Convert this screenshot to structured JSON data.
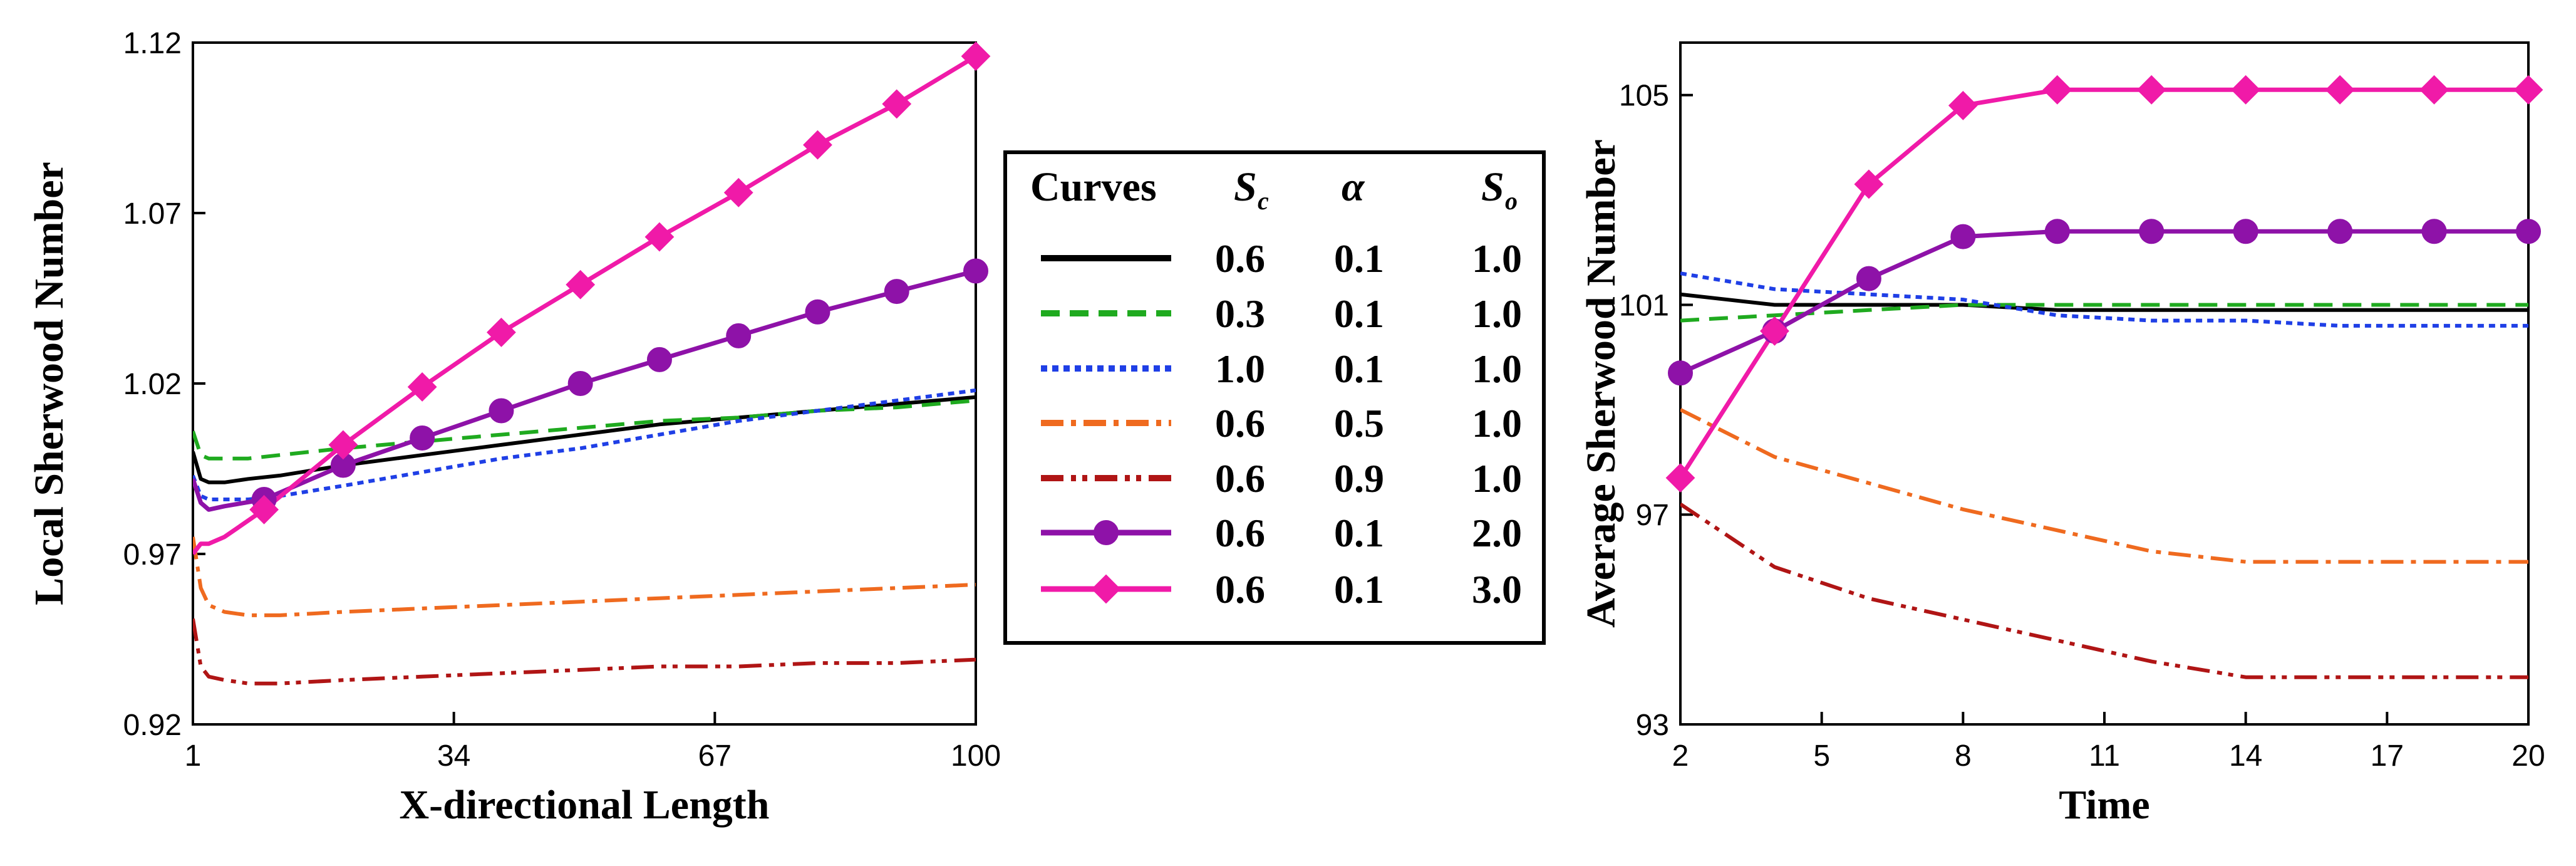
{
  "colors": {
    "black": "#000000",
    "green": "#1faa1f",
    "blue": "#1f3fe6",
    "orange": "#ef6a1f",
    "darkred": "#b01515",
    "purple": "#8e12a8",
    "magenta": "#f01aa8"
  },
  "legend": {
    "header": {
      "curves": "Curves",
      "sc_main": "S",
      "sc_sub": "c",
      "alpha": "α",
      "so_main": "S",
      "so_sub": "o"
    },
    "rows": [
      {
        "sc": "0.6",
        "alpha": "0.1",
        "so": "1.0",
        "color": "#000000",
        "style": "solid",
        "marker": "none"
      },
      {
        "sc": "0.3",
        "alpha": "0.1",
        "so": "1.0",
        "color": "#1faa1f",
        "style": "dashed",
        "marker": "none"
      },
      {
        "sc": "1.0",
        "alpha": "0.1",
        "so": "1.0",
        "color": "#1f3fe6",
        "style": "dotted",
        "marker": "none"
      },
      {
        "sc": "0.6",
        "alpha": "0.5",
        "so": "1.0",
        "color": "#ef6a1f",
        "style": "dashdot",
        "marker": "none"
      },
      {
        "sc": "0.6",
        "alpha": "0.9",
        "so": "1.0",
        "color": "#b01515",
        "style": "dashdotdot",
        "marker": "none"
      },
      {
        "sc": "0.6",
        "alpha": "0.1",
        "so": "2.0",
        "color": "#8e12a8",
        "style": "solid",
        "marker": "circle"
      },
      {
        "sc": "0.6",
        "alpha": "0.1",
        "so": "3.0",
        "color": "#f01aa8",
        "style": "solid",
        "marker": "diamond"
      }
    ]
  },
  "chart_data": [
    {
      "type": "line",
      "xlabel": "X-directional Length",
      "ylabel": "Local Sherwood Number",
      "xlim": [
        1,
        100
      ],
      "ylim": [
        0.92,
        1.12
      ],
      "xticks": [
        "1",
        "34",
        "67",
        "100"
      ],
      "yticks": [
        "0.92",
        "0.97",
        "1.02",
        "1.07",
        "1.12"
      ],
      "series": [
        {
          "legend_index": 0,
          "x": [
            1,
            2,
            3,
            5,
            8,
            12,
            20,
            30,
            40,
            50,
            60,
            70,
            80,
            90,
            100
          ],
          "y": [
            1.0,
            0.992,
            0.991,
            0.991,
            0.992,
            0.993,
            0.996,
            0.999,
            1.002,
            1.005,
            1.008,
            1.01,
            1.012,
            1.014,
            1.016
          ]
        },
        {
          "legend_index": 1,
          "x": [
            1,
            2,
            3,
            5,
            8,
            12,
            20,
            30,
            40,
            50,
            60,
            70,
            80,
            90,
            100
          ],
          "y": [
            1.006,
            0.999,
            0.998,
            0.998,
            0.998,
            0.999,
            1.001,
            1.003,
            1.005,
            1.007,
            1.009,
            1.01,
            1.012,
            1.013,
            1.015
          ]
        },
        {
          "legend_index": 2,
          "x": [
            1,
            2,
            3,
            5,
            8,
            12,
            20,
            30,
            40,
            50,
            60,
            70,
            80,
            90,
            100
          ],
          "y": [
            0.993,
            0.987,
            0.986,
            0.986,
            0.986,
            0.987,
            0.99,
            0.994,
            0.998,
            1.001,
            1.005,
            1.009,
            1.012,
            1.015,
            1.018
          ]
        },
        {
          "legend_index": 3,
          "x": [
            1,
            2,
            3,
            5,
            8,
            12,
            20,
            30,
            40,
            50,
            60,
            70,
            80,
            90,
            100
          ],
          "y": [
            0.975,
            0.96,
            0.955,
            0.953,
            0.952,
            0.952,
            0.953,
            0.954,
            0.955,
            0.956,
            0.957,
            0.958,
            0.959,
            0.96,
            0.961
          ]
        },
        {
          "legend_index": 4,
          "x": [
            1,
            2,
            3,
            5,
            8,
            12,
            20,
            30,
            40,
            50,
            60,
            70,
            80,
            90,
            100
          ],
          "y": [
            0.951,
            0.937,
            0.934,
            0.933,
            0.932,
            0.932,
            0.933,
            0.934,
            0.935,
            0.936,
            0.937,
            0.937,
            0.938,
            0.938,
            0.939
          ]
        },
        {
          "legend_index": 5,
          "x": [
            1,
            2,
            3,
            5,
            10,
            20,
            30,
            40,
            50,
            60,
            70,
            80,
            90,
            100
          ],
          "y": [
            0.992,
            0.985,
            0.983,
            0.984,
            0.986,
            0.996,
            1.004,
            1.012,
            1.02,
            1.027,
            1.034,
            1.041,
            1.047,
            1.053
          ]
        },
        {
          "legend_index": 6,
          "x": [
            1,
            2,
            3,
            5,
            10,
            20,
            30,
            40,
            50,
            60,
            70,
            80,
            90,
            100
          ],
          "y": [
            0.97,
            0.973,
            0.973,
            0.975,
            0.983,
            1.002,
            1.019,
            1.035,
            1.049,
            1.063,
            1.076,
            1.09,
            1.102,
            1.116
          ]
        }
      ],
      "markers": {
        "5": {
          "x": [
            10,
            20,
            30,
            40,
            50,
            60,
            70,
            80,
            90,
            100
          ]
        },
        "6": {
          "x": [
            10,
            20,
            30,
            40,
            50,
            60,
            70,
            80,
            90,
            100
          ]
        }
      }
    },
    {
      "type": "line",
      "xlabel": "Time",
      "ylabel": "Average Sherwood Number",
      "xlim": [
        2,
        20
      ],
      "ylim": [
        93,
        106
      ],
      "xticks": [
        "2",
        "5",
        "8",
        "11",
        "14",
        "17",
        "20"
      ],
      "yticks": [
        "93",
        "97",
        "101",
        "105"
      ],
      "series": [
        {
          "legend_index": 0,
          "x": [
            2,
            4,
            6,
            8,
            10,
            12,
            14,
            16,
            18,
            20
          ],
          "y": [
            101.2,
            101.0,
            101.0,
            101.0,
            100.9,
            100.9,
            100.9,
            100.9,
            100.9,
            100.9
          ]
        },
        {
          "legend_index": 1,
          "x": [
            2,
            4,
            6,
            8,
            10,
            12,
            14,
            16,
            18,
            20
          ],
          "y": [
            100.7,
            100.8,
            100.9,
            101.0,
            101.0,
            101.0,
            101.0,
            101.0,
            101.0,
            101.0
          ]
        },
        {
          "legend_index": 2,
          "x": [
            2,
            4,
            6,
            8,
            10,
            12,
            14,
            16,
            18,
            20
          ],
          "y": [
            101.6,
            101.3,
            101.2,
            101.1,
            100.8,
            100.7,
            100.7,
            100.6,
            100.6,
            100.6
          ]
        },
        {
          "legend_index": 3,
          "x": [
            2,
            4,
            6,
            8,
            10,
            12,
            14,
            16,
            18,
            20
          ],
          "y": [
            99.0,
            98.1,
            97.6,
            97.1,
            96.7,
            96.3,
            96.1,
            96.1,
            96.1,
            96.1
          ]
        },
        {
          "legend_index": 4,
          "x": [
            2,
            4,
            6,
            8,
            10,
            12,
            14,
            16,
            18,
            20
          ],
          "y": [
            97.2,
            96.0,
            95.4,
            95.0,
            94.6,
            94.2,
            93.9,
            93.9,
            93.9,
            93.9
          ]
        },
        {
          "legend_index": 5,
          "x": [
            2,
            4,
            6,
            8,
            10,
            12,
            14,
            16,
            18,
            20
          ],
          "y": [
            99.7,
            100.5,
            101.5,
            102.3,
            102.4,
            102.4,
            102.4,
            102.4,
            102.4,
            102.4
          ]
        },
        {
          "legend_index": 6,
          "x": [
            2,
            4,
            6,
            8,
            10,
            12,
            14,
            16,
            18,
            20
          ],
          "y": [
            97.7,
            100.5,
            103.3,
            104.8,
            105.1,
            105.1,
            105.1,
            105.1,
            105.1,
            105.1
          ]
        }
      ],
      "markers": {
        "5": {
          "x": [
            2,
            4,
            6,
            8,
            10,
            12,
            14,
            16,
            18,
            20
          ]
        },
        "6": {
          "x": [
            2,
            4,
            6,
            8,
            10,
            12,
            14,
            16,
            18,
            20
          ]
        }
      }
    }
  ]
}
